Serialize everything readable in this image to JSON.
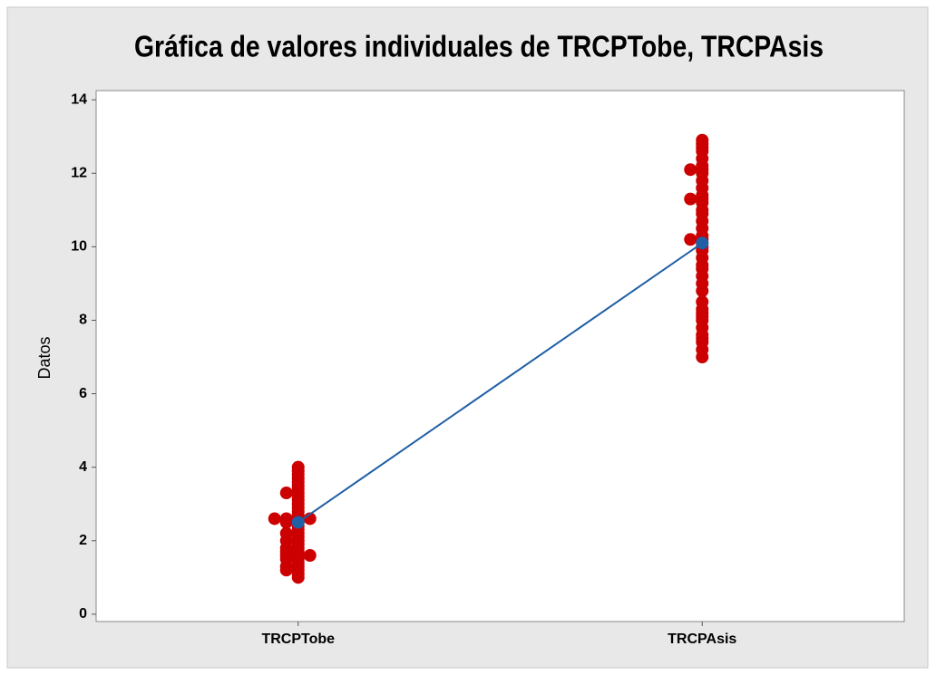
{
  "chart_data": {
    "type": "individual-value",
    "title": "Gráfica de valores individuales de TRCPTobe, TRCPAsis",
    "ylabel": "Datos",
    "categories": [
      "TRCPTobe",
      "TRCPAsis"
    ],
    "values": [
      [
        1.0,
        1.1,
        1.2,
        1.2,
        1.3,
        1.3,
        1.4,
        1.5,
        1.5,
        1.6,
        1.6,
        1.6,
        1.7,
        1.7,
        1.8,
        1.8,
        1.9,
        2.0,
        2.0,
        2.1,
        2.2,
        2.2,
        2.3,
        2.4,
        2.5,
        2.5,
        2.6,
        2.6,
        2.6,
        2.6,
        2.7,
        2.8,
        2.9,
        3.0,
        3.1,
        3.2,
        3.3,
        3.3,
        3.4,
        3.5,
        3.6,
        3.7,
        3.8,
        3.9,
        4.0
      ],
      [
        7.0,
        7.2,
        7.4,
        7.5,
        7.6,
        7.8,
        8.0,
        8.1,
        8.2,
        8.3,
        8.5,
        8.8,
        9.0,
        9.2,
        9.4,
        9.5,
        9.7,
        9.9,
        10.0,
        10.1,
        10.2,
        10.2,
        10.3,
        10.5,
        10.7,
        10.9,
        11.0,
        11.2,
        11.3,
        11.3,
        11.4,
        11.6,
        11.8,
        12.0,
        12.1,
        12.1,
        12.2,
        12.4,
        12.6,
        12.7,
        12.8,
        12.9
      ]
    ],
    "means": [
      2.5,
      10.1
    ],
    "point_color": "#cc0000",
    "mean_color": "#1f5fa6",
    "ylim": [
      -0.2,
      14.25
    ],
    "yticks": [
      0,
      2,
      4,
      6,
      8,
      10,
      12,
      14
    ]
  }
}
